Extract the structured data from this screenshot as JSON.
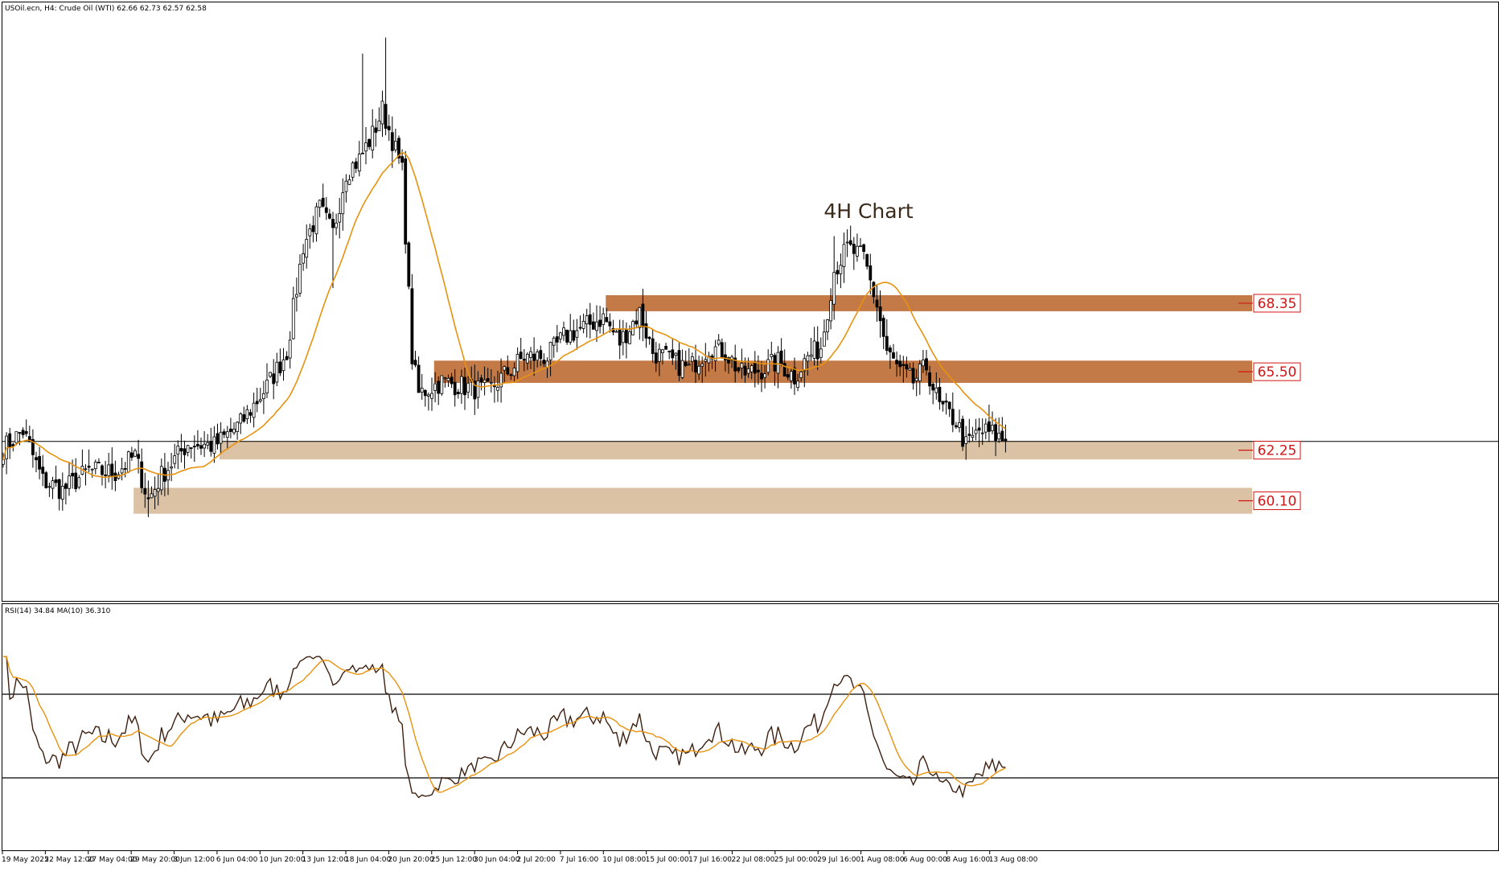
{
  "header": {
    "main_info": "USOil.ecn, H4:  Crude Oil (WTI)  62.66 62.73 62.57 62.58",
    "rsi_info": "RSI(14) 34.84 MA(10) 36.310"
  },
  "annotation": "4H Chart",
  "colors": {
    "candle": "#000000",
    "ma": "#e8920f",
    "rsi_line": "#3d2010",
    "resistance_zone": "#c47a47",
    "support_zone": "#dcc2a5",
    "level_text": "#d01515",
    "crosshair": "#000000"
  },
  "chart_data": [
    {
      "type": "candlestick",
      "title": "4H Chart",
      "ylim": [
        57.0,
        78.5
      ],
      "ma_period": 20,
      "grid": false,
      "zones": [
        {
          "label": "68.35",
          "low": 67.85,
          "high": 68.5,
          "x_from": "10 Jul 08:00",
          "style": "resistance"
        },
        {
          "label": "65.50",
          "low": 64.95,
          "high": 65.85,
          "x_from": "25 Jun 12:00",
          "style": "resistance"
        },
        {
          "label": "62.25",
          "low": 61.85,
          "high": 62.6,
          "x_from": "6 Jun 04:00",
          "style": "support"
        },
        {
          "label": "60.10",
          "low": 59.65,
          "high": 60.7,
          "x_from": "29 May 20:00",
          "style": "support"
        }
      ],
      "current_price": 62.58,
      "x_tick_labels": [
        "19 May 2025",
        "22 May 12:00",
        "27 May 04:00",
        "29 May 20:00",
        "3 Jun 12:00",
        "6 Jun 04:00",
        "10 Jun 20:00",
        "13 Jun 12:00",
        "18 Jun 04:00",
        "20 Jun 20:00",
        "25 Jun 12:00",
        "30 Jun 04:00",
        "2 Jul 20:00",
        "7 Jul 16:00",
        "10 Jul 08:00",
        "15 Jul 00:00",
        "17 Jul 16:00",
        "22 Jul 08:00",
        "25 Jul 00:00",
        "29 Jul 16:00",
        "1 Aug 08:00",
        "6 Aug 00:00",
        "8 Aug 16:00",
        "13 Aug 08:00"
      ],
      "anchors": [
        [
          0,
          62.3
        ],
        [
          6,
          63.0
        ],
        [
          12,
          61.0
        ],
        [
          18,
          60.6
        ],
        [
          26,
          61.4
        ],
        [
          34,
          61.3
        ],
        [
          40,
          62.0
        ],
        [
          44,
          60.2
        ],
        [
          48,
          61.2
        ],
        [
          56,
          62.5
        ],
        [
          64,
          62.4
        ],
        [
          72,
          63.3
        ],
        [
          80,
          64.8
        ],
        [
          86,
          66.2
        ],
        [
          91,
          70.5
        ],
        [
          96,
          72.0
        ],
        [
          100,
          71.0
        ],
        [
          104,
          73.5
        ],
        [
          108,
          74.0
        ],
        [
          112,
          75.0
        ],
        [
          115,
          76.0
        ],
        [
          118,
          74.8
        ],
        [
          121,
          73.5
        ],
        [
          124,
          66.0
        ],
        [
          126,
          64.5
        ],
        [
          133,
          65.0
        ],
        [
          140,
          64.8
        ],
        [
          147,
          64.6
        ],
        [
          153,
          65.4
        ],
        [
          158,
          66.0
        ],
        [
          165,
          66.0
        ],
        [
          170,
          66.8
        ],
        [
          176,
          67.2
        ],
        [
          182,
          67.6
        ],
        [
          187,
          66.6
        ],
        [
          193,
          67.8
        ],
        [
          197,
          66.2
        ],
        [
          203,
          65.8
        ],
        [
          208,
          65.5
        ],
        [
          214,
          66.4
        ],
        [
          219,
          66.2
        ],
        [
          224,
          65.3
        ],
        [
          230,
          65.5
        ],
        [
          235,
          65.8
        ],
        [
          240,
          65.2
        ],
        [
          244,
          66.0
        ],
        [
          248,
          66.4
        ],
        [
          252,
          69.5
        ],
        [
          256,
          70.4
        ],
        [
          261,
          70.0
        ],
        [
          265,
          68.1
        ],
        [
          268,
          66.2
        ],
        [
          272,
          65.4
        ],
        [
          276,
          65.0
        ],
        [
          280,
          65.6
        ],
        [
          284,
          64.0
        ],
        [
          289,
          63.4
        ],
        [
          292,
          62.4
        ],
        [
          296,
          63.0
        ],
        [
          300,
          62.9
        ],
        [
          304,
          62.6
        ]
      ]
    },
    {
      "type": "line",
      "title": "RSI(14)",
      "ylim": [
        0,
        100
      ],
      "levels": [
        70,
        30
      ],
      "ma_period": 10,
      "current": 34.84,
      "ma_current": 36.31
    }
  ]
}
